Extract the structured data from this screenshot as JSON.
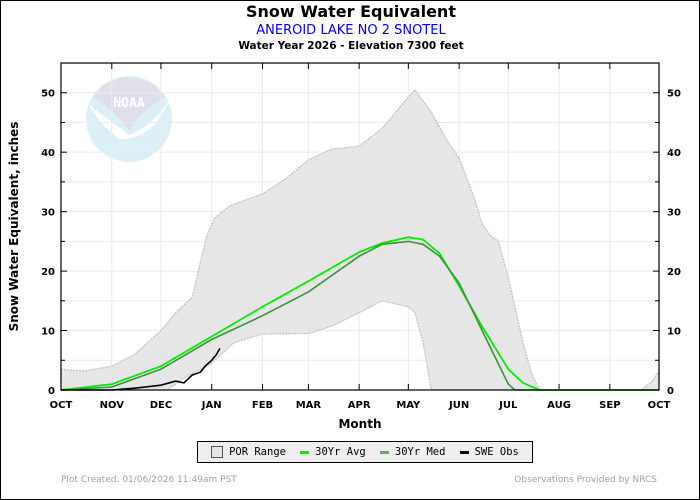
{
  "header": {
    "title": "Snow Water Equivalent",
    "station": "ANEROID LAKE NO 2 SNOTEL",
    "subtitle": "Water Year 2026 -  Elevation 7300 feet"
  },
  "footer": {
    "created": "Plot Created: 01/06/2026 11:49am PST",
    "provided": "Observations Provided by NRCS"
  },
  "logo": {
    "text": "NOAA"
  },
  "chart_data": {
    "type": "area",
    "title": "Snow Water Equivalent",
    "xlabel": "Month",
    "ylabel": "Snow Water Equivalent, inches",
    "xlim": [
      "2025-10-01",
      "2026-10-01"
    ],
    "ylim": [
      0,
      55
    ],
    "yticks": [
      0,
      10,
      20,
      30,
      40,
      50
    ],
    "xticks": [
      {
        "date": "2025-10-01",
        "label": "OCT"
      },
      {
        "date": "2025-11-01",
        "label": "NOV"
      },
      {
        "date": "2025-12-01",
        "label": "DEC"
      },
      {
        "date": "2026-01-01",
        "label": "JAN"
      },
      {
        "date": "2026-02-01",
        "label": "FEB"
      },
      {
        "date": "2026-03-01",
        "label": "MAR"
      },
      {
        "date": "2026-04-01",
        "label": "APR"
      },
      {
        "date": "2026-05-01",
        "label": "MAY"
      },
      {
        "date": "2026-06-01",
        "label": "JUN"
      },
      {
        "date": "2026-07-01",
        "label": "JUL"
      },
      {
        "date": "2026-08-01",
        "label": "AUG"
      },
      {
        "date": "2026-09-01",
        "label": "SEP"
      },
      {
        "date": "2026-10-01",
        "label": "OCT"
      }
    ],
    "grid": true,
    "legend_placement": "bottom",
    "colors": {
      "por_fill": "#e6e6e6",
      "por_edge": "#c0c0c0",
      "avg": "#00ee00",
      "med": "#3f8f3f",
      "obs": "#000000"
    },
    "por_range": {
      "name": "POR Range",
      "max": [
        [
          "2025-10-01",
          3.5
        ],
        [
          "2025-10-15",
          3.2
        ],
        [
          "2025-11-01",
          4
        ],
        [
          "2025-11-15",
          6
        ],
        [
          "2025-12-01",
          10
        ],
        [
          "2025-12-10",
          13
        ],
        [
          "2025-12-20",
          15.6
        ],
        [
          "2025-12-29",
          26
        ],
        [
          "2026-01-03",
          29
        ],
        [
          "2026-01-12",
          31
        ],
        [
          "2026-02-01",
          33
        ],
        [
          "2026-02-15",
          35.5
        ],
        [
          "2026-03-01",
          38.7
        ],
        [
          "2026-03-15",
          40.5
        ],
        [
          "2026-04-01",
          41
        ],
        [
          "2026-04-15",
          44
        ],
        [
          "2026-05-01",
          49.3
        ],
        [
          "2026-05-05",
          50.5
        ],
        [
          "2026-05-15",
          46.8
        ],
        [
          "2026-05-25",
          41.8
        ],
        [
          "2026-06-01",
          39
        ],
        [
          "2026-06-10",
          32.5
        ],
        [
          "2026-06-15",
          28
        ],
        [
          "2026-06-20",
          26
        ],
        [
          "2026-06-25",
          25
        ],
        [
          "2026-07-01",
          19
        ],
        [
          "2026-07-10",
          8
        ],
        [
          "2026-07-15",
          3
        ],
        [
          "2026-07-20",
          0
        ],
        [
          "2026-09-20",
          0
        ],
        [
          "2026-09-27",
          1.5
        ],
        [
          "2026-10-01",
          3.2
        ]
      ],
      "min": [
        [
          "2025-10-01",
          0
        ],
        [
          "2025-12-05",
          0
        ],
        [
          "2025-12-15",
          2
        ],
        [
          "2026-01-01",
          4.5
        ],
        [
          "2026-01-15",
          8
        ],
        [
          "2026-02-01",
          9.4
        ],
        [
          "2026-03-01",
          9.5
        ],
        [
          "2026-03-15",
          10.7
        ],
        [
          "2026-04-01",
          13
        ],
        [
          "2026-04-15",
          15
        ],
        [
          "2026-05-01",
          14
        ],
        [
          "2026-05-05",
          13
        ],
        [
          "2026-05-10",
          8
        ],
        [
          "2026-05-15",
          0
        ],
        [
          "2026-10-01",
          0
        ]
      ]
    },
    "series": [
      {
        "name": "30Yr Avg",
        "values": [
          [
            "2025-10-01",
            0
          ],
          [
            "2025-11-01",
            1
          ],
          [
            "2025-12-01",
            4
          ],
          [
            "2026-01-01",
            9
          ],
          [
            "2026-02-01",
            14
          ],
          [
            "2026-03-01",
            18.3
          ],
          [
            "2026-04-01",
            23.2
          ],
          [
            "2026-04-15",
            24.7
          ],
          [
            "2026-05-01",
            25.7
          ],
          [
            "2026-05-10",
            25.3
          ],
          [
            "2026-05-20",
            23
          ],
          [
            "2026-06-01",
            17.5
          ],
          [
            "2026-06-15",
            10.7
          ],
          [
            "2026-07-01",
            3.5
          ],
          [
            "2026-07-10",
            1.2
          ],
          [
            "2026-07-20",
            0
          ],
          [
            "2026-10-01",
            0
          ]
        ]
      },
      {
        "name": "30Yr Med",
        "values": [
          [
            "2025-10-01",
            0
          ],
          [
            "2025-11-01",
            0.5
          ],
          [
            "2025-12-01",
            3.5
          ],
          [
            "2026-01-01",
            8.5
          ],
          [
            "2026-02-01",
            12.5
          ],
          [
            "2026-03-01",
            16.5
          ],
          [
            "2026-04-01",
            22.5
          ],
          [
            "2026-04-15",
            24.5
          ],
          [
            "2026-05-01",
            25
          ],
          [
            "2026-05-10",
            24.5
          ],
          [
            "2026-05-20",
            22.5
          ],
          [
            "2026-06-01",
            18
          ],
          [
            "2026-06-15",
            10
          ],
          [
            "2026-07-01",
            1
          ],
          [
            "2026-07-05",
            0
          ],
          [
            "2026-10-01",
            0
          ]
        ]
      },
      {
        "name": "SWE Obs",
        "values": [
          [
            "2025-10-01",
            0
          ],
          [
            "2025-11-01",
            0
          ],
          [
            "2025-11-15",
            0.3
          ],
          [
            "2025-12-01",
            0.8
          ],
          [
            "2025-12-10",
            1.5
          ],
          [
            "2025-12-15",
            1.2
          ],
          [
            "2025-12-20",
            2.5
          ],
          [
            "2025-12-25",
            3
          ],
          [
            "2025-12-28",
            4
          ],
          [
            "2026-01-01",
            5
          ],
          [
            "2026-01-04",
            6
          ],
          [
            "2026-01-06",
            7
          ]
        ]
      }
    ]
  },
  "legend": [
    {
      "label": "POR Range",
      "icon": "box"
    },
    {
      "label": "30Yr Avg",
      "icon": "line"
    },
    {
      "label": "30Yr Med",
      "icon": "line"
    },
    {
      "label": "SWE Obs",
      "icon": "line"
    }
  ]
}
